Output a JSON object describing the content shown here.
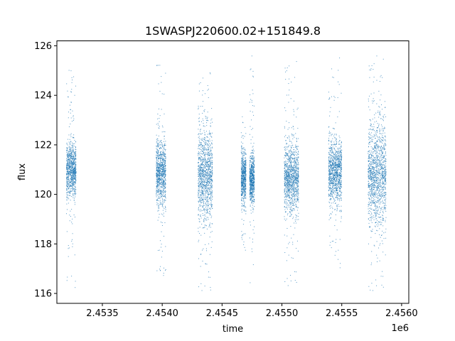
{
  "chart_data": {
    "type": "scatter",
    "title": "1SWASPJ220600.02+151849.8",
    "xlabel": "time",
    "ylabel": "flux",
    "x_offset_label": "1e6",
    "xlim": [
      2453120,
      2456060
    ],
    "ylim": [
      115.6,
      126.2
    ],
    "x_ticks": [
      2453500,
      2454000,
      2454500,
      2455000,
      2455500,
      2456000
    ],
    "x_tick_labels": [
      "2.4535",
      "2.4540",
      "2.4545",
      "2.4550",
      "2.4555",
      "2.4560"
    ],
    "y_ticks": [
      116,
      118,
      120,
      122,
      124,
      126
    ],
    "y_tick_labels": [
      "116",
      "118",
      "120",
      "122",
      "124",
      "126"
    ],
    "grid": false,
    "marker_color": "#1f77b4",
    "series": [
      {
        "clusters": [
          {
            "x_start": 2453200,
            "x_end": 2453280,
            "center": 121.0,
            "core_spread": 0.55,
            "outlier_range": [
              116.2,
              125.3
            ]
          },
          {
            "x_start": 2453950,
            "x_end": 2454030,
            "center": 120.9,
            "core_spread": 0.65,
            "outlier_range": [
              116.5,
              125.6
            ]
          },
          {
            "x_start": 2454300,
            "x_end": 2454420,
            "center": 120.8,
            "core_spread": 0.95,
            "outlier_range": [
              116.1,
              125.0
            ]
          },
          {
            "x_start": 2454660,
            "x_end": 2454700,
            "center": 120.7,
            "core_spread": 0.5,
            "outlier_range": [
              117.6,
              123.5
            ]
          },
          {
            "x_start": 2454730,
            "x_end": 2454770,
            "center": 120.6,
            "core_spread": 0.5,
            "outlier_range": [
              116.4,
              125.6
            ]
          },
          {
            "x_start": 2455020,
            "x_end": 2455140,
            "center": 120.7,
            "core_spread": 0.7,
            "outlier_range": [
              116.3,
              125.5
            ]
          },
          {
            "x_start": 2455390,
            "x_end": 2455500,
            "center": 120.9,
            "core_spread": 0.65,
            "outlier_range": [
              117.0,
              125.6
            ]
          },
          {
            "x_start": 2455720,
            "x_end": 2455870,
            "center": 120.8,
            "core_spread": 1.05,
            "outlier_range": [
              116.1,
              125.6
            ]
          }
        ]
      }
    ]
  }
}
